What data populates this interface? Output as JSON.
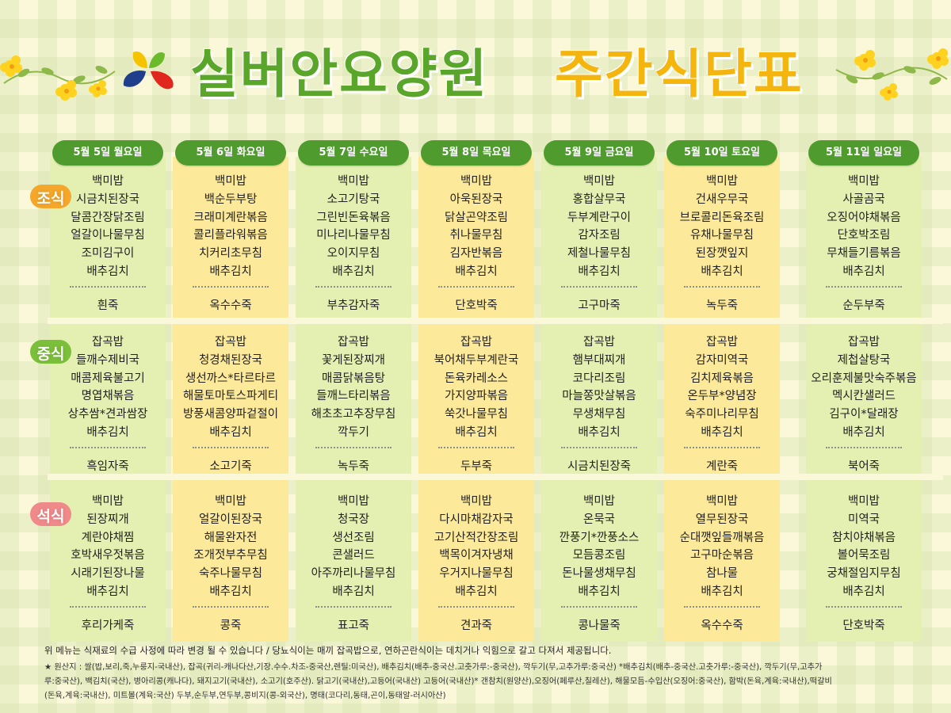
{
  "header": {
    "title_main": "실버안요양원",
    "title_sub": "주간식단표"
  },
  "colors": {
    "green": "#4f9b2e",
    "title_green": "#5aa62a",
    "title_yellow": "#f5b50f",
    "col_yellow": "#fde99a",
    "col_green": "#e4efb2",
    "label_orange": "#f4a72a",
    "label_green": "#7bbf3a",
    "label_pink": "#f08a8a"
  },
  "meals": {
    "breakfast": "조식",
    "lunch": "중식",
    "dinner": "석식"
  },
  "days": [
    {
      "date": "5월 5일 월요일",
      "breakfast": {
        "dishes": [
          "백미밥",
          "시금치된장국",
          "달콤간장닭조림",
          "얼갈이나물무침",
          "조미김구이",
          "배추김치"
        ],
        "porridge": "흰죽"
      },
      "lunch": {
        "dishes": [
          "잡곡밥",
          "들깨수제비국",
          "매콤제육불고기",
          "명엽채볶음",
          "상추쌈*견과쌈장",
          "배추김치"
        ],
        "porridge": "흑임자죽"
      },
      "dinner": {
        "dishes": [
          "백미밥",
          "된장찌개",
          "계란야채찜",
          "호박새우젓볶음",
          "시래기된장나물",
          "배추김치"
        ],
        "porridge": "후리가케죽"
      }
    },
    {
      "date": "5월 6일 화요일",
      "breakfast": {
        "dishes": [
          "백미밥",
          "백순두부탕",
          "크래미계란볶음",
          "콜리플라워볶음",
          "치커리초무침",
          "배추김치"
        ],
        "porridge": "옥수수죽"
      },
      "lunch": {
        "dishes": [
          "잡곡밥",
          "청경채된장국",
          "생선까스*타르타르",
          "해물토마토스파게티",
          "방풍새콤양파겉절이",
          "배추김치"
        ],
        "porridge": "소고기죽"
      },
      "dinner": {
        "dishes": [
          "백미밥",
          "얼갈이된장국",
          "해물완자전",
          "조개젓부추무침",
          "숙주나물무침",
          "배추김치"
        ],
        "porridge": "콩죽"
      }
    },
    {
      "date": "5월 7일 수요일",
      "breakfast": {
        "dishes": [
          "백미밥",
          "소고기탕국",
          "그린빈돈육볶음",
          "미나리나물무침",
          "오이지무침",
          "배추김치"
        ],
        "porridge": "부추감자죽"
      },
      "lunch": {
        "dishes": [
          "잡곡밥",
          "꽃게된장찌개",
          "매콤닭볶음탕",
          "들깨느타리볶음",
          "해초초고추장무침",
          "깍두기"
        ],
        "porridge": "녹두죽"
      },
      "dinner": {
        "dishes": [
          "백미밥",
          "청국장",
          "생선조림",
          "콘샐러드",
          "아주까리나물무침",
          "배추김치"
        ],
        "porridge": "표고죽"
      }
    },
    {
      "date": "5월 8일 목요일",
      "breakfast": {
        "dishes": [
          "백미밥",
          "아욱된장국",
          "닭살곤약조림",
          "취나물무침",
          "김자반볶음",
          "배추김치"
        ],
        "porridge": "단호박죽"
      },
      "lunch": {
        "dishes": [
          "잡곡밥",
          "북어채두부계란국",
          "돈육카레소스",
          "가지양파볶음",
          "쑥갓나물무침",
          "배추김치"
        ],
        "porridge": "두부죽"
      },
      "dinner": {
        "dishes": [
          "백미밥",
          "다시마채감자국",
          "고기산적간장조림",
          "백목이겨자냉채",
          "우거지나물무침",
          "배추김치"
        ],
        "porridge": "견과죽"
      }
    },
    {
      "date": "5월 9일 금요일",
      "breakfast": {
        "dishes": [
          "백미밥",
          "홍합살무국",
          "두부계란구이",
          "감자조림",
          "제철나물무침",
          "배추김치"
        ],
        "porridge": "고구마죽"
      },
      "lunch": {
        "dishes": [
          "잡곡밥",
          "햄부대찌개",
          "코다리조림",
          "마늘쫑맛살볶음",
          "무생채무침",
          "배추김치"
        ],
        "porridge": "시금치된장죽"
      },
      "dinner": {
        "dishes": [
          "백미밥",
          "온묵국",
          "깐풍기*깐풍소스",
          "모듬콩조림",
          "돈나물생채무침",
          "배추김치"
        ],
        "porridge": "콩나물죽"
      }
    },
    {
      "date": "5월 10일 토요일",
      "breakfast": {
        "dishes": [
          "백미밥",
          "건새우무국",
          "브로콜리돈육조림",
          "유채나물무침",
          "된장깻잎지",
          "배추김치"
        ],
        "porridge": "녹두죽"
      },
      "lunch": {
        "dishes": [
          "잡곡밥",
          "감자미역국",
          "김치제육볶음",
          "온두부*양념장",
          "숙주미나리무침",
          "배추김치"
        ],
        "porridge": "계란죽"
      },
      "dinner": {
        "dishes": [
          "백미밥",
          "열무된장국",
          "순대깻잎들깨볶음",
          "고구마순볶음",
          "참나물",
          "배추김치"
        ],
        "porridge": "옥수수죽"
      }
    },
    {
      "date": "5월 11일 일요일",
      "breakfast": {
        "dishes": [
          "백미밥",
          "사골곰국",
          "오징어야채볶음",
          "단호박조림",
          "무채들기름볶음",
          "배추김치"
        ],
        "porridge": "순두부죽"
      },
      "lunch": {
        "dishes": [
          "잡곡밥",
          "제첩살탕국",
          "오리훈제불맛숙주볶음",
          "멕시칸샐러드",
          "김구이*달래장",
          "배추김치"
        ],
        "porridge": "북어죽"
      },
      "dinner": {
        "dishes": [
          "백미밥",
          "미역국",
          "참치야채볶음",
          "볼어묵조림",
          "궁채절임지무침",
          "배추김치"
        ],
        "porridge": "단호박죽"
      }
    }
  ],
  "footer": {
    "note": "위 메뉴는 식재료의 수급 사정에 따라 변경 될 수 있습니다 / 당뇨식이는 매끼 잡곡밥으로, 연하곤란식이는 데치거나 익힘으로 갈고 다져서 제공됩니다.",
    "origin_line1": "★ 원산지 : 쌀(밥,보리,죽,누룽지-국내산), 잡곡(귀리-캐나다산,기장.수수.차조-중국산,렌틸:미국산), 배추김치(배추-중국산.고춧가루:-중국산), 깍두기(무,고추가루:중국산) *배추김치(배추-중국산.고춧가루:-중국산), 깍두기(무,고추가",
    "origin_line2": "루:중국산), 백김치(국산), 병아리콩(캐나다), 돼지고기(국내산), 소고기(호주산). 닭고기(국내산),고등어(국내산) 고등어(국내산)* 갠참치(원양산),오징어(페루산,칠레산), 해물모듬-수입산(오징어:중국산), 함박(돈육,계육:국내산),떡갈비",
    "origin_line3": "(돈육,계육:국내산), 미트볼(계육:국산) 두부,순두부,연두부,콩비지(콩-외국산), 명태(코다리,동태,곤이,동태알-러시아산)"
  }
}
